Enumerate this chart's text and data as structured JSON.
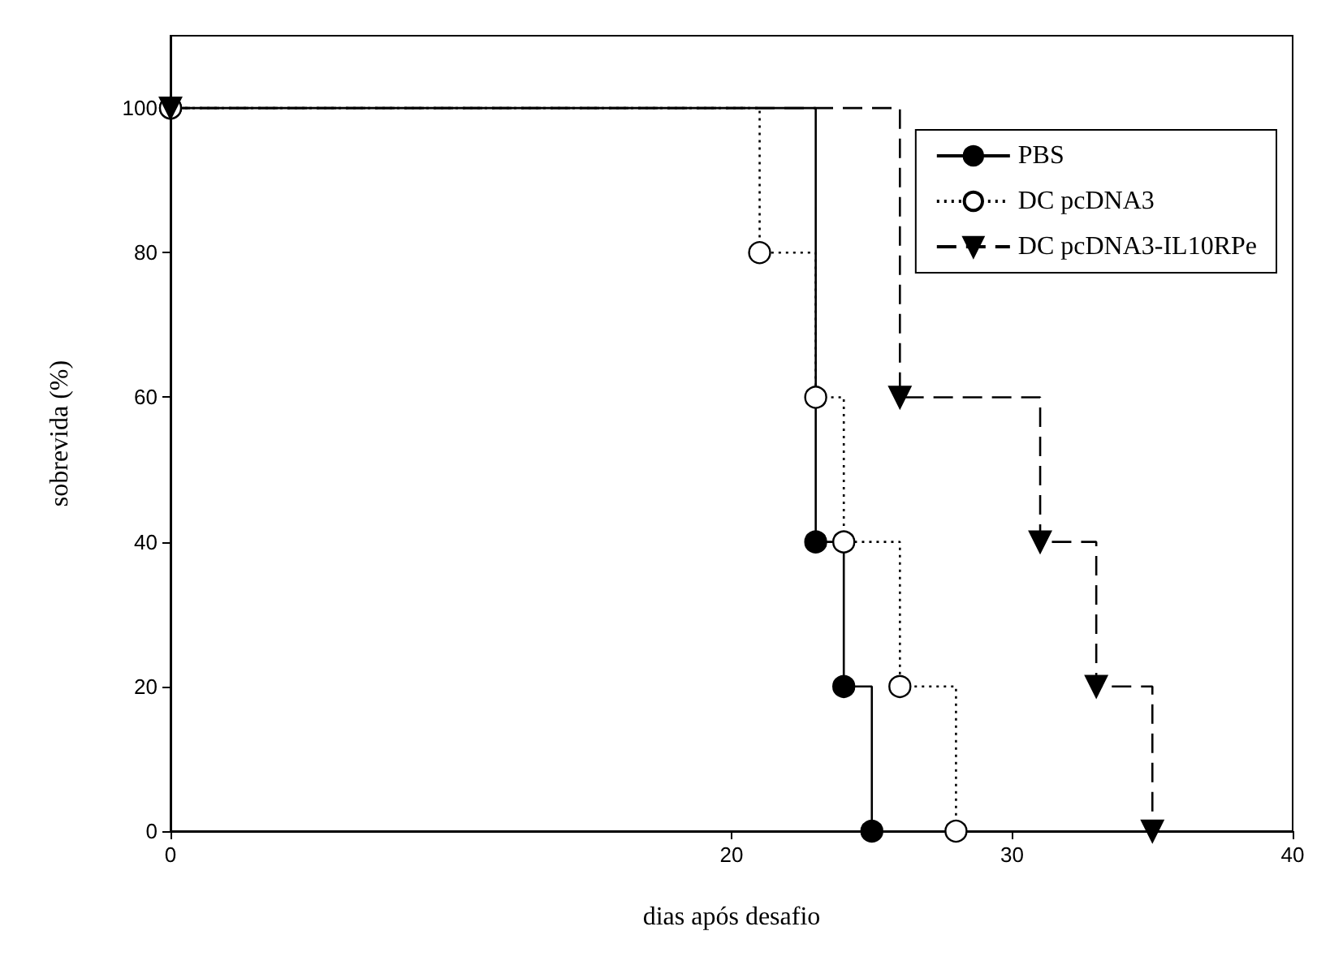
{
  "chart_data": {
    "type": "step",
    "xlabel": "dias após desafio",
    "ylabel": "sobrevida (%)",
    "xlim": [
      0,
      40
    ],
    "xticks": [
      0,
      20,
      30,
      40
    ],
    "ylim": [
      0,
      110
    ],
    "yticks": [
      0,
      20,
      40,
      60,
      80,
      100
    ],
    "grid": false,
    "legend": "top right",
    "series": [
      {
        "name": "PBS",
        "color": "#000000",
        "marker": "circle",
        "line_style": "solid",
        "x": [
          0,
          23,
          24,
          25
        ],
        "values": [
          100,
          40,
          20,
          0
        ]
      },
      {
        "name": "DC pcDNA3",
        "color": "#000000",
        "marker": "circle_open",
        "line_style": "dotted",
        "x": [
          0,
          21,
          23,
          24,
          26,
          28
        ],
        "values": [
          100,
          80,
          60,
          40,
          20,
          0
        ]
      },
      {
        "name": "DC pcDNA3-IL10RPe",
        "color": "#000000",
        "marker": "triangle",
        "line_style": "dashed",
        "x": [
          0,
          26,
          31,
          33,
          35
        ],
        "values": [
          100,
          60,
          40,
          20,
          0
        ]
      }
    ]
  }
}
